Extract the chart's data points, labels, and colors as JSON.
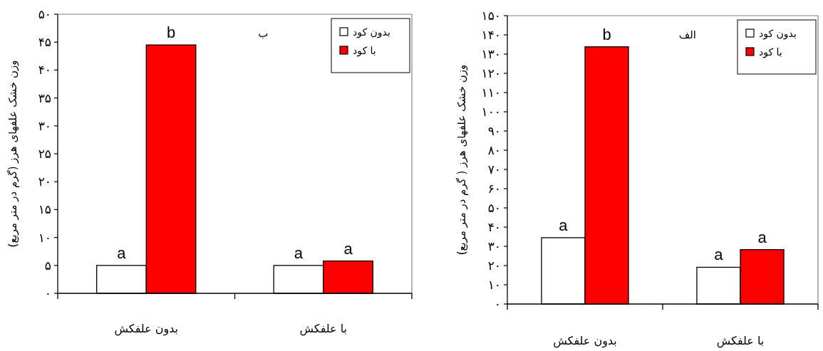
{
  "chart_data": [
    {
      "type": "bar",
      "title": "ب",
      "ylabel": "وزن خشک علفهای هرز (گرم در متر مربع)",
      "categories": [
        "بدون علفکش",
        "با علفکش"
      ],
      "series": [
        {
          "name": "بدون کود",
          "color": "#ffffff",
          "values": [
            5,
            5
          ],
          "value_labels": [
            "a",
            "a"
          ]
        },
        {
          "name": "با کود",
          "color": "#ff0000",
          "values": [
            44.5,
            5.8
          ],
          "value_labels": [
            "b",
            "a"
          ]
        }
      ],
      "ylim": [
        0,
        50
      ],
      "yticks": [
        {
          "value": 0,
          "label": "۰"
        },
        {
          "value": 5,
          "label": "۵"
        },
        {
          "value": 10,
          "label": "۱۰"
        },
        {
          "value": 15,
          "label": "۱۵"
        },
        {
          "value": 20,
          "label": "۲۰"
        },
        {
          "value": 25,
          "label": "۲۵"
        },
        {
          "value": 30,
          "label": "۳۰"
        },
        {
          "value": 35,
          "label": "۳۵"
        },
        {
          "value": 40,
          "label": "۴۰"
        },
        {
          "value": 45,
          "label": "۴۵"
        },
        {
          "value": 50,
          "label": "۵۰"
        }
      ],
      "grid": false,
      "legend": "top right"
    },
    {
      "type": "bar",
      "title": "الف",
      "ylabel": "وزن خشک علفهای هرز ( گرم در متر مربع)",
      "categories": [
        "بدون علفکش",
        "با علفکش"
      ],
      "series": [
        {
          "name": "بدون کود",
          "color": "#ffffff",
          "values": [
            34.5,
            19.1
          ],
          "value_labels": [
            "a",
            "a"
          ]
        },
        {
          "name": "با کود",
          "color": "#ff0000",
          "values": [
            133.8,
            28.3
          ],
          "value_labels": [
            "b",
            "a"
          ]
        }
      ],
      "ylim": [
        0,
        150
      ],
      "yticks": [
        {
          "value": 0,
          "label": "۰"
        },
        {
          "value": 10,
          "label": "۱۰"
        },
        {
          "value": 20,
          "label": "۲۰"
        },
        {
          "value": 30,
          "label": "۳۰"
        },
        {
          "value": 40,
          "label": "۴۰"
        },
        {
          "value": 50,
          "label": "۵۰"
        },
        {
          "value": 60,
          "label": "۶۰"
        },
        {
          "value": 70,
          "label": "۷۰"
        },
        {
          "value": 80,
          "label": "۸۰"
        },
        {
          "value": 90,
          "label": "۹۰"
        },
        {
          "value": 100,
          "label": "۱۰۰"
        },
        {
          "value": 110,
          "label": "۱۱۰"
        },
        {
          "value": 120,
          "label": "۱۲۰"
        },
        {
          "value": 130,
          "label": "۱۳۰"
        },
        {
          "value": 140,
          "label": "۱۴۰"
        },
        {
          "value": 150,
          "label": "۱۵۰"
        }
      ],
      "grid": false,
      "legend": "top right"
    }
  ]
}
